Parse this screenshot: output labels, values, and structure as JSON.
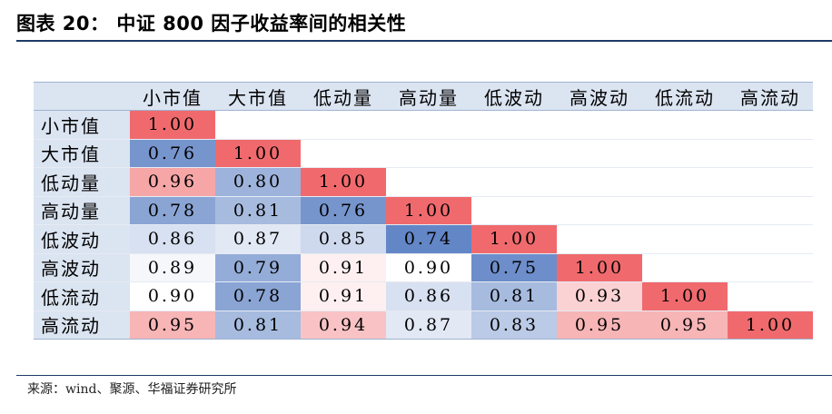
{
  "title": "图表 20：  中证 800 因子收益率间的相关性",
  "source": "来源：wind、聚源、华福证券研究所",
  "headers": [
    "小市值",
    "大市值",
    "低动量",
    "高动量",
    "低波动",
    "高波动",
    "低流动",
    "高流动"
  ],
  "rows": [
    {
      "label": "小市值",
      "values": [
        "1.00"
      ]
    },
    {
      "label": "大市值",
      "values": [
        "0.76",
        "1.00"
      ]
    },
    {
      "label": "低动量",
      "values": [
        "0.96",
        "0.80",
        "1.00"
      ]
    },
    {
      "label": "高动量",
      "values": [
        "0.78",
        "0.81",
        "0.76",
        "1.00"
      ]
    },
    {
      "label": "低波动",
      "values": [
        "0.86",
        "0.87",
        "0.85",
        "0.74",
        "1.00"
      ]
    },
    {
      "label": "高波动",
      "values": [
        "0.89",
        "0.79",
        "0.91",
        "0.90",
        "0.75",
        "1.00"
      ]
    },
    {
      "label": "低流动",
      "values": [
        "0.90",
        "0.78",
        "0.91",
        "0.86",
        "0.81",
        "0.93",
        "1.00"
      ]
    },
    {
      "label": "高流动",
      "values": [
        "0.95",
        "0.81",
        "0.94",
        "0.87",
        "0.83",
        "0.95",
        "0.95",
        "1.00"
      ]
    }
  ],
  "colors": {
    "high": "#f06a6d",
    "mid": "#ffffff",
    "low": "#6386c6",
    "header_bg": "#dbe4f1",
    "rule": "#1f3a68"
  }
}
